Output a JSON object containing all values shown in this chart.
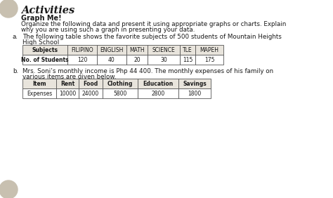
{
  "title": "Activities",
  "subtitle": "Graph Me!",
  "intro_line1": "Organize the following data and present it using appropriate graphs or charts. Explain",
  "intro_line2": "why you are using such a graph in presenting your data.",
  "section_a_label": "a.",
  "section_a_line1": "The following table shows the favorite subjects of 500 students of Mountain Heights",
  "section_a_line2": "High School",
  "table_a_headers": [
    "Subjects",
    "FILIPINO",
    "ENGLISH",
    "MATH",
    "SCIENCE",
    "TLE",
    "MAPEH"
  ],
  "table_a_row_label": "No. of Students",
  "table_a_values": [
    "120",
    "40",
    "20",
    "30",
    "115",
    "175"
  ],
  "section_b_label": "b.",
  "section_b_line1": "Mrs. Soni’s monthly income is Php 44 400. The monthly expenses of his family on",
  "section_b_line2": "various items are given below.",
  "table_b_headers": [
    "Item",
    "Rent",
    "Food",
    "Clothing",
    "Education",
    "Savings"
  ],
  "table_b_row_label": "Expenses",
  "table_b_values": [
    "10000",
    "24000",
    "5800",
    "2800",
    "1800"
  ],
  "bg_color": "#ffffff",
  "text_color": "#1a1a1a",
  "circle_color": "#c8c0b0",
  "table_header_bg": "#e8e4dc",
  "table_border": "#555555"
}
